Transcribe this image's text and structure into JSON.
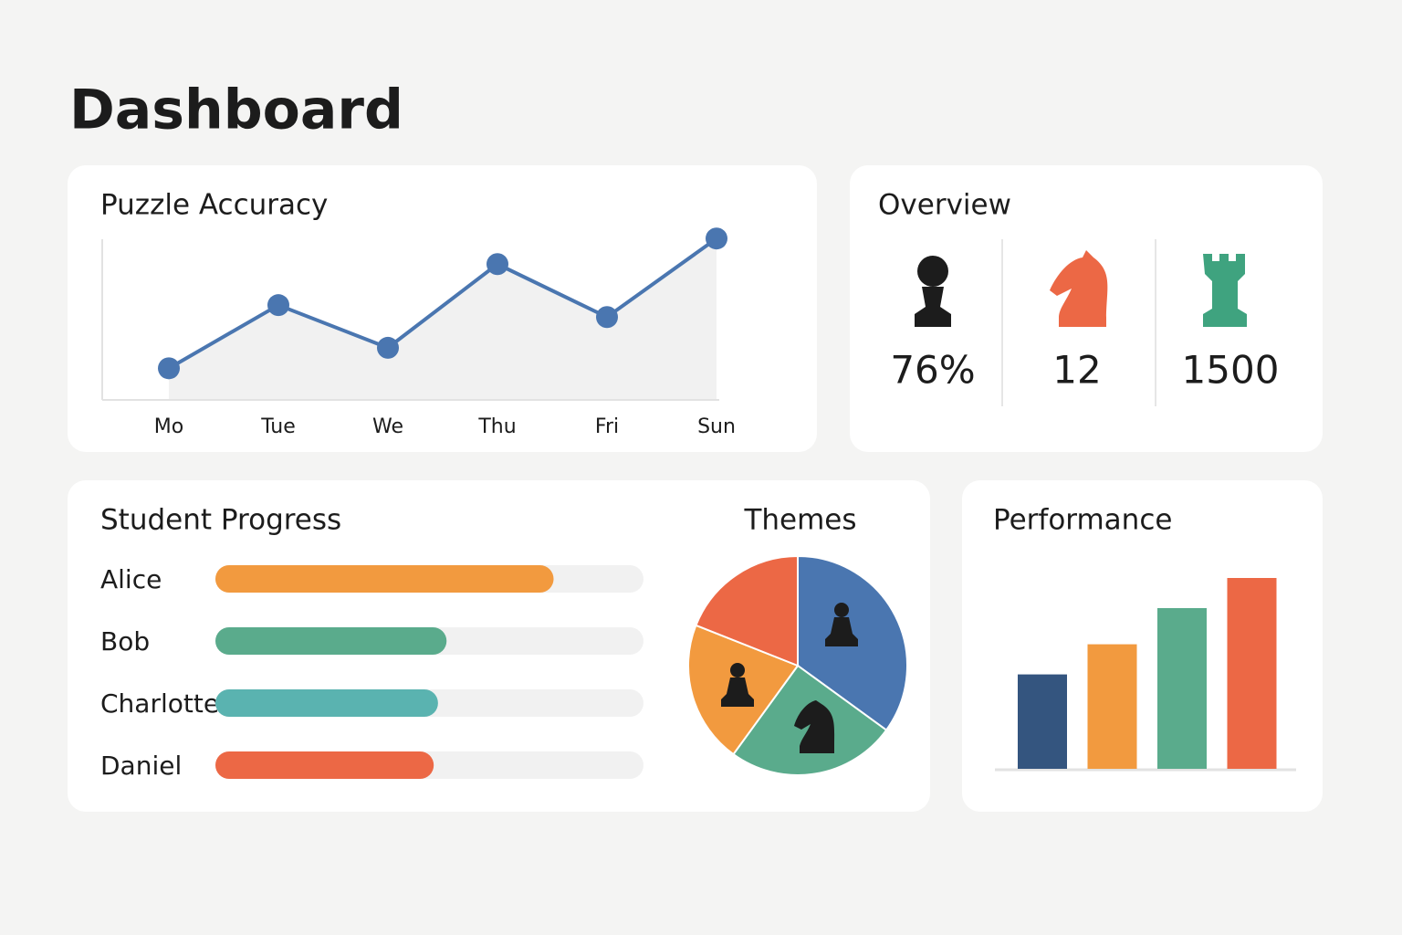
{
  "title": "Dashboard",
  "overview": {
    "title": "Overview",
    "stats": [
      "76%",
      "12",
      "1500"
    ]
  },
  "chart_data": [
    {
      "type": "line",
      "title": "Puzzle Accuracy",
      "categories": [
        "Mo",
        "Tue",
        "We",
        "Thu",
        "Fri",
        "Sun"
      ],
      "values": [
        18,
        55,
        30,
        79,
        48,
        94
      ],
      "color": "#4a76b0",
      "ylim": [
        0,
        100
      ]
    },
    {
      "type": "hbar",
      "title": "Student Progress",
      "categories": [
        "Alice",
        "Bob",
        "Charlotte",
        "Daniel"
      ],
      "values": [
        79,
        54,
        52,
        51
      ],
      "colors": [
        "#f29a3f",
        "#5aab8c",
        "#5ab3b0",
        "#ec6845"
      ],
      "xlim": [
        0,
        100
      ]
    },
    {
      "type": "pie",
      "title": "Themes",
      "values": [
        35,
        25,
        21,
        19
      ],
      "colors": [
        "#4a76b0",
        "#5aab8c",
        "#f29a3f",
        "#ec6845"
      ]
    },
    {
      "type": "bar",
      "title": "Performance",
      "values": [
        47,
        62,
        80,
        95
      ],
      "colors": [
        "#34557f",
        "#f29a3f",
        "#5aab8c",
        "#ec6845"
      ],
      "ylim": [
        0,
        100
      ]
    }
  ]
}
